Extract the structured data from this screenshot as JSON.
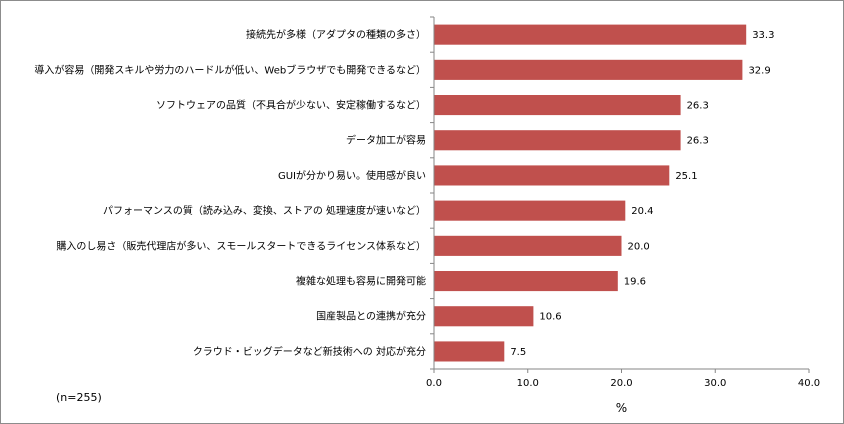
{
  "chart_data": {
    "type": "bar",
    "orientation": "horizontal",
    "title": "",
    "xlabel": "%",
    "ylabel": "",
    "note": "(n=255)",
    "categories": [
      "接続先が多様（アダプタの種類の多さ）",
      "導入が容易（開発スキルや労力のハードルが低い、Webブラウザでも開発できるなど）",
      "ソフトウェアの品質（不具合が少ない、安定稼働するなど）",
      "データ加工が容易",
      "GUIが分かり易い。使用感が良い",
      "パフォーマンスの質（読み込み、変換、ストアの 処理速度が速いなど）",
      "購入のし易さ（販売代理店が多い、スモールスタートできるライセンス体系など）",
      "複雑な処理も容易に開発可能",
      "国産製品との連携が充分",
      "クラウド・ビッグデータなど新技術への 対応が充分"
    ],
    "values": [
      33.3,
      32.9,
      26.3,
      26.3,
      25.1,
      20.4,
      20.0,
      19.6,
      10.6,
      7.5
    ],
    "value_labels": [
      "33.3",
      "32.9",
      "26.3",
      "26.3",
      "25.1",
      "20.4",
      "20.0",
      "19.6",
      "10.6",
      "7.5"
    ],
    "xlim": [
      0,
      40
    ],
    "xticks": [
      0,
      10,
      20,
      30,
      40
    ],
    "xtick_labels": [
      "0.0",
      "10.0",
      "20.0",
      "30.0",
      "40.0"
    ],
    "bar_color": "#c0504d",
    "grid": false,
    "legend": "none"
  }
}
